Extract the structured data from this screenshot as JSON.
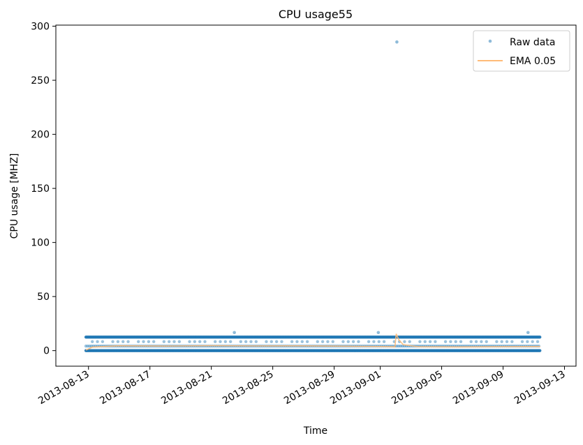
{
  "chart_data": {
    "type": "scatter",
    "title": "CPU usage55",
    "xlabel": "Time",
    "ylabel": "CPU usage [MHZ]",
    "x_type": "date",
    "xlim": [
      "2013-08-10T21:00",
      "2013-09-13T18:00"
    ],
    "ylim": [
      -14.4,
      301
    ],
    "x_ticks": [
      "2013-08-13",
      "2013-08-17",
      "2013-08-21",
      "2013-08-25",
      "2013-08-29",
      "2013-09-01",
      "2013-09-05",
      "2013-09-09",
      "2013-09-13"
    ],
    "y_ticks": [
      0,
      50,
      100,
      150,
      200,
      250,
      300
    ],
    "grid": false,
    "legend_position": "top-right",
    "series": [
      {
        "name": "Raw data",
        "kind": "markers",
        "color": "#1f77b4",
        "bands": [
          {
            "y": 0,
            "from": "2013-08-12T20:00",
            "to": "2013-09-11T10:00",
            "density": "continuous"
          },
          {
            "y": 12.5,
            "from": "2013-08-12T20:00",
            "to": "2013-09-11T10:00",
            "density": "continuous"
          },
          {
            "y": 8.3,
            "from": "2013-08-13T06:00",
            "to": "2013-09-11T08:00",
            "density": "sparse"
          },
          {
            "y": 4.2,
            "from": "2013-08-12T20:00",
            "to": "2013-09-11T10:00",
            "density": "dense"
          }
        ],
        "points": [
          {
            "x": "2013-08-22T12:00",
            "y": 16.7
          },
          {
            "x": "2013-08-31T21:00",
            "y": 16.7
          },
          {
            "x": "2013-09-02T02:00",
            "y": 285.4
          },
          {
            "x": "2013-09-10T15:00",
            "y": 16.7
          }
        ]
      },
      {
        "name": "EMA 0.05",
        "kind": "line",
        "color": "#ffbb78",
        "points": [
          {
            "x": "2013-08-12T20:00",
            "y": 0.5
          },
          {
            "x": "2013-08-13T06:00",
            "y": 3.2
          },
          {
            "x": "2013-08-15T00:00",
            "y": 4.5
          },
          {
            "x": "2013-08-18T00:00",
            "y": 4.2
          },
          {
            "x": "2013-08-21T00:00",
            "y": 4.6
          },
          {
            "x": "2013-08-24T00:00",
            "y": 4.3
          },
          {
            "x": "2013-08-27T00:00",
            "y": 4.4
          },
          {
            "x": "2013-08-30T00:00",
            "y": 4.0
          },
          {
            "x": "2013-09-01T00:00",
            "y": 3.8
          },
          {
            "x": "2013-09-01T23:00",
            "y": 3.5
          },
          {
            "x": "2013-09-02T01:00",
            "y": 15.5
          },
          {
            "x": "2013-09-02T05:00",
            "y": 10.0
          },
          {
            "x": "2013-09-02T12:00",
            "y": 5.5
          },
          {
            "x": "2013-09-03T12:00",
            "y": 3.5
          },
          {
            "x": "2013-09-06T00:00",
            "y": 3.4
          },
          {
            "x": "2013-09-09T00:00",
            "y": 3.6
          },
          {
            "x": "2013-09-11T10:00",
            "y": 3.8
          }
        ]
      }
    ]
  }
}
